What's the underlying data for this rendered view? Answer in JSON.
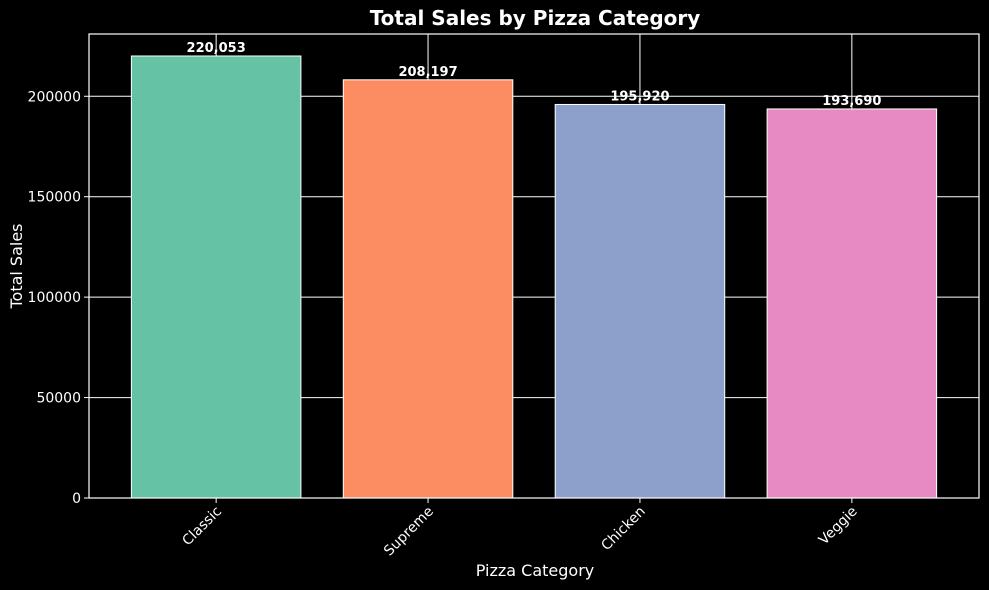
{
  "chart_data": {
    "type": "bar",
    "title": "Total Sales by Pizza Category",
    "xlabel": "Pizza Category",
    "ylabel": "Total Sales",
    "categories": [
      "Classic",
      "Supreme",
      "Chicken",
      "Veggie"
    ],
    "values": [
      220053,
      208197,
      195920,
      193690
    ],
    "value_labels": [
      "220,053",
      "208,197",
      "195,920",
      "193,690"
    ],
    "colors": [
      "#66c2a5",
      "#fc8d62",
      "#8da0cb",
      "#e78ac3"
    ],
    "ylim": [
      0,
      231000
    ],
    "yticks": [
      0,
      50000,
      100000,
      150000,
      200000
    ],
    "ytick_labels": [
      "0",
      "50000",
      "100000",
      "150000",
      "200000"
    ],
    "grid": true,
    "background": "#000000",
    "text_color": "#ffffff"
  }
}
